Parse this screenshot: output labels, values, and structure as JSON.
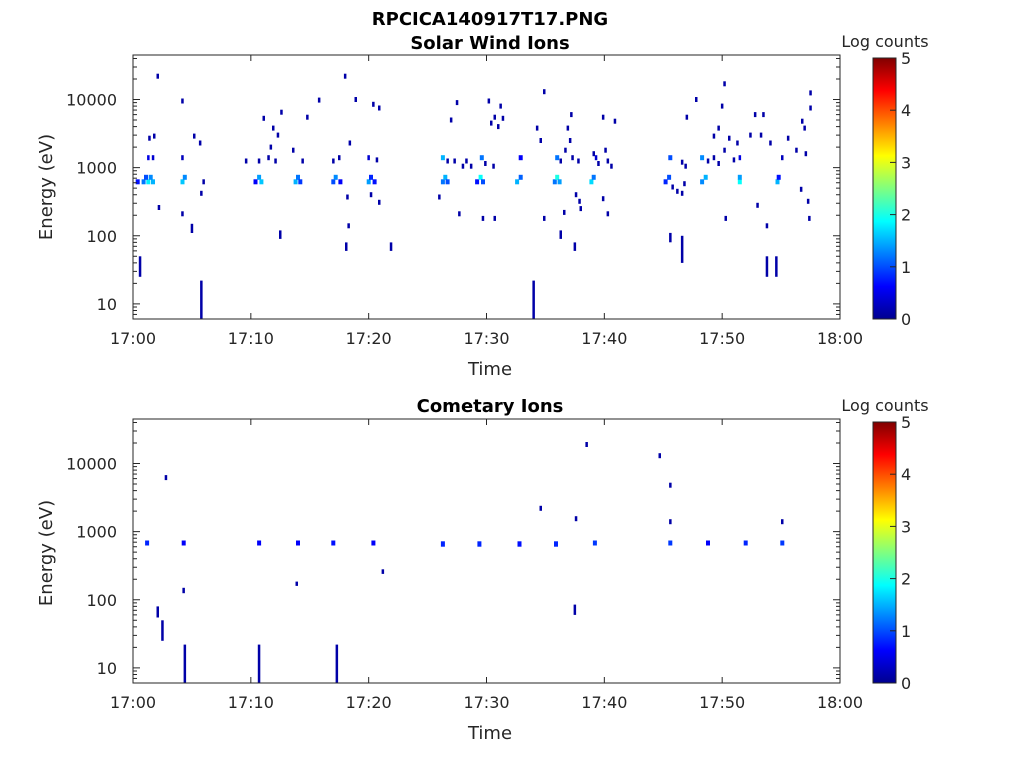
{
  "figure_title": "RPCICA140917T17.PNG",
  "colorbar": {
    "label": "Log counts",
    "ticks": [
      "0",
      "1",
      "2",
      "3",
      "4",
      "5"
    ],
    "range": [
      0,
      5
    ],
    "colormap": "jet"
  },
  "chart_data": [
    {
      "type": "heatmap",
      "title": "Solar Wind Ions",
      "xlabel": "Time",
      "ylabel": "Energy (eV)",
      "x_ticks": [
        "17:00",
        "17:10",
        "17:20",
        "17:30",
        "17:40",
        "17:50",
        "18:00"
      ],
      "xlim_minutes": [
        0,
        60
      ],
      "y_ticks": [
        "10",
        "100",
        "1000",
        "10000"
      ],
      "ylim": [
        6,
        45000
      ],
      "yscale": "log",
      "points": [
        {
          "t": 0.6,
          "e1": 25,
          "e2": 50,
          "v": 0.2
        },
        {
          "t": 5.8,
          "e1": 6,
          "e2": 22,
          "v": 0.2
        },
        {
          "t": 34.0,
          "e1": 6,
          "e2": 22,
          "v": 0.2
        },
        {
          "t": 0.4,
          "e": 620,
          "v": 0.7
        },
        {
          "t": 0.9,
          "e": 620,
          "v": 1.2
        },
        {
          "t": 1.3,
          "e": 620,
          "v": 1.8
        },
        {
          "t": 1.7,
          "e": 620,
          "v": 1.5
        },
        {
          "t": 1.1,
          "e": 720,
          "v": 1.0
        },
        {
          "t": 1.5,
          "e": 720,
          "v": 1.3
        },
        {
          "t": 1.3,
          "e": 1400,
          "v": 0.5
        },
        {
          "t": 1.7,
          "e": 1400,
          "v": 0.4
        },
        {
          "t": 1.4,
          "e": 2700,
          "v": 0.2
        },
        {
          "t": 1.8,
          "e": 2900,
          "v": 0.2
        },
        {
          "t": 2.1,
          "e": 22000,
          "v": 0.2
        },
        {
          "t": 2.2,
          "e": 260,
          "v": 0.2
        },
        {
          "t": 4.2,
          "e": 9500,
          "v": 0.2
        },
        {
          "t": 4.2,
          "e": 620,
          "v": 1.6
        },
        {
          "t": 4.4,
          "e": 720,
          "v": 1.3
        },
        {
          "t": 4.2,
          "e": 1400,
          "v": 0.3
        },
        {
          "t": 4.2,
          "e": 210,
          "v": 0.2
        },
        {
          "t": 5.0,
          "e1": 110,
          "e2": 150,
          "v": 0.2
        },
        {
          "t": 5.2,
          "e": 2900,
          "v": 0.2
        },
        {
          "t": 5.7,
          "e": 2300,
          "v": 0.2
        },
        {
          "t": 5.8,
          "e": 420,
          "v": 0.2
        },
        {
          "t": 6.0,
          "e": 620,
          "v": 0.2
        },
        {
          "t": 9.6,
          "e": 1250,
          "v": 0.2
        },
        {
          "t": 10.4,
          "e": 620,
          "v": 0.6
        },
        {
          "t": 10.7,
          "e": 720,
          "v": 1.4
        },
        {
          "t": 10.9,
          "e": 620,
          "v": 1.6
        },
        {
          "t": 10.7,
          "e": 1250,
          "v": 0.2
        },
        {
          "t": 11.1,
          "e": 5300,
          "v": 0.2
        },
        {
          "t": 11.5,
          "e": 1400,
          "v": 0.2
        },
        {
          "t": 11.7,
          "e": 2000,
          "v": 0.2
        },
        {
          "t": 11.9,
          "e": 3800,
          "v": 0.2
        },
        {
          "t": 12.1,
          "e": 1250,
          "v": 0.2
        },
        {
          "t": 12.3,
          "e": 3000,
          "v": 0.2
        },
        {
          "t": 12.5,
          "e1": 90,
          "e2": 120,
          "v": 0.2
        },
        {
          "t": 12.6,
          "e": 6500,
          "v": 0.2
        },
        {
          "t": 13.6,
          "e": 1800,
          "v": 0.2
        },
        {
          "t": 13.8,
          "e": 620,
          "v": 1.5
        },
        {
          "t": 14.0,
          "e": 720,
          "v": 1.2
        },
        {
          "t": 14.2,
          "e": 620,
          "v": 0.9
        },
        {
          "t": 14.4,
          "e": 1250,
          "v": 0.2
        },
        {
          "t": 14.8,
          "e": 5500,
          "v": 0.2
        },
        {
          "t": 15.8,
          "e": 9800,
          "v": 0.2
        },
        {
          "t": 17.0,
          "e": 620,
          "v": 1.0
        },
        {
          "t": 17.2,
          "e": 720,
          "v": 1.3
        },
        {
          "t": 17.6,
          "e": 620,
          "v": 0.6
        },
        {
          "t": 17.0,
          "e": 1250,
          "v": 0.2
        },
        {
          "t": 17.5,
          "e": 1400,
          "v": 0.2
        },
        {
          "t": 18.0,
          "e": 22000,
          "v": 0.2
        },
        {
          "t": 18.1,
          "e1": 60,
          "e2": 80,
          "v": 0.2
        },
        {
          "t": 18.3,
          "e": 140,
          "v": 0.2
        },
        {
          "t": 18.4,
          "e": 2300,
          "v": 0.2
        },
        {
          "t": 18.9,
          "e": 10000,
          "v": 0.2
        },
        {
          "t": 18.2,
          "e": 370,
          "v": 0.2
        },
        {
          "t": 20.0,
          "e": 620,
          "v": 1.4
        },
        {
          "t": 20.2,
          "e": 720,
          "v": 0.8
        },
        {
          "t": 20.0,
          "e": 1400,
          "v": 0.4
        },
        {
          "t": 20.2,
          "e": 400,
          "v": 0.2
        },
        {
          "t": 20.4,
          "e": 8500,
          "v": 0.2
        },
        {
          "t": 20.9,
          "e": 7500,
          "v": 0.2
        },
        {
          "t": 20.7,
          "e": 1300,
          "v": 0.2
        },
        {
          "t": 20.5,
          "e": 620,
          "v": 0.7
        },
        {
          "t": 20.9,
          "e": 310,
          "v": 0.2
        },
        {
          "t": 21.9,
          "e1": 60,
          "e2": 80,
          "v": 0.2
        },
        {
          "t": 26.0,
          "e": 370,
          "v": 0.2
        },
        {
          "t": 26.3,
          "e": 620,
          "v": 1.2
        },
        {
          "t": 26.5,
          "e": 720,
          "v": 1.5
        },
        {
          "t": 26.7,
          "e": 620,
          "v": 1.0
        },
        {
          "t": 26.3,
          "e": 1400,
          "v": 1.5
        },
        {
          "t": 26.7,
          "e": 1250,
          "v": 0.2
        },
        {
          "t": 27.0,
          "e": 5000,
          "v": 0.2
        },
        {
          "t": 27.3,
          "e": 1250,
          "v": 0.2
        },
        {
          "t": 27.5,
          "e": 9000,
          "v": 0.2
        },
        {
          "t": 27.7,
          "e": 210,
          "v": 0.2
        },
        {
          "t": 28.0,
          "e": 1050,
          "v": 0.2
        },
        {
          "t": 28.3,
          "e": 1250,
          "v": 0.2
        },
        {
          "t": 28.7,
          "e": 1050,
          "v": 0.2
        },
        {
          "t": 29.2,
          "e": 620,
          "v": 0.7
        },
        {
          "t": 29.5,
          "e": 720,
          "v": 1.9
        },
        {
          "t": 29.7,
          "e": 620,
          "v": 1.0
        },
        {
          "t": 29.6,
          "e": 1400,
          "v": 1.2
        },
        {
          "t": 29.7,
          "e": 180,
          "v": 0.2
        },
        {
          "t": 29.9,
          "e": 1150,
          "v": 0.2
        },
        {
          "t": 30.2,
          "e": 9500,
          "v": 0.2
        },
        {
          "t": 30.4,
          "e": 4500,
          "v": 0.2
        },
        {
          "t": 30.6,
          "e": 1050,
          "v": 0.2
        },
        {
          "t": 30.7,
          "e": 5500,
          "v": 0.2
        },
        {
          "t": 30.7,
          "e": 180,
          "v": 0.2
        },
        {
          "t": 31.0,
          "e": 4000,
          "v": 0.2
        },
        {
          "t": 31.2,
          "e": 8000,
          "v": 0.2
        },
        {
          "t": 31.4,
          "e": 5300,
          "v": 0.2
        },
        {
          "t": 32.6,
          "e": 620,
          "v": 1.5
        },
        {
          "t": 32.9,
          "e": 720,
          "v": 1.1
        },
        {
          "t": 32.9,
          "e": 1400,
          "v": 0.6
        },
        {
          "t": 34.3,
          "e": 3800,
          "v": 0.2
        },
        {
          "t": 34.6,
          "e": 2500,
          "v": 0.2
        },
        {
          "t": 34.9,
          "e": 13000,
          "v": 0.2
        },
        {
          "t": 34.9,
          "e": 180,
          "v": 0.2
        },
        {
          "t": 35.8,
          "e": 620,
          "v": 1.2
        },
        {
          "t": 36.0,
          "e": 720,
          "v": 2.0
        },
        {
          "t": 36.2,
          "e": 620,
          "v": 1.4
        },
        {
          "t": 36.0,
          "e": 1400,
          "v": 1.2
        },
        {
          "t": 36.3,
          "e": 1250,
          "v": 0.2
        },
        {
          "t": 36.3,
          "e1": 90,
          "e2": 120,
          "v": 0.2
        },
        {
          "t": 36.7,
          "e": 1800,
          "v": 0.2
        },
        {
          "t": 36.9,
          "e": 3800,
          "v": 0.2
        },
        {
          "t": 36.6,
          "e": 220,
          "v": 0.2
        },
        {
          "t": 37.1,
          "e": 2500,
          "v": 0.2
        },
        {
          "t": 37.2,
          "e": 6000,
          "v": 0.2
        },
        {
          "t": 37.3,
          "e": 1400,
          "v": 0.2
        },
        {
          "t": 37.5,
          "e1": 60,
          "e2": 80,
          "v": 0.2
        },
        {
          "t": 37.6,
          "e": 400,
          "v": 0.2
        },
        {
          "t": 37.8,
          "e": 1250,
          "v": 0.2
        },
        {
          "t": 37.9,
          "e": 320,
          "v": 0.2
        },
        {
          "t": 38.0,
          "e": 250,
          "v": 0.2
        },
        {
          "t": 38.9,
          "e": 620,
          "v": 1.7
        },
        {
          "t": 39.1,
          "e": 720,
          "v": 1.2
        },
        {
          "t": 39.3,
          "e": 1400,
          "v": 0.4
        },
        {
          "t": 39.1,
          "e": 1600,
          "v": 0.2
        },
        {
          "t": 39.5,
          "e": 1150,
          "v": 0.2
        },
        {
          "t": 39.9,
          "e": 5500,
          "v": 0.2
        },
        {
          "t": 39.9,
          "e": 350,
          "v": 0.2
        },
        {
          "t": 40.1,
          "e": 1800,
          "v": 0.2
        },
        {
          "t": 40.3,
          "e": 1250,
          "v": 0.2
        },
        {
          "t": 40.3,
          "e": 210,
          "v": 0.2
        },
        {
          "t": 40.6,
          "e": 1050,
          "v": 0.2
        },
        {
          "t": 40.9,
          "e": 4800,
          "v": 0.2
        },
        {
          "t": 45.2,
          "e": 620,
          "v": 0.8
        },
        {
          "t": 45.5,
          "e": 720,
          "v": 1.0
        },
        {
          "t": 45.6,
          "e": 1400,
          "v": 1.0
        },
        {
          "t": 45.8,
          "e": 520,
          "v": 0.2
        },
        {
          "t": 45.6,
          "e1": 80,
          "e2": 110,
          "v": 0.2
        },
        {
          "t": 46.2,
          "e": 450,
          "v": 0.2
        },
        {
          "t": 46.6,
          "e1": 40,
          "e2": 100,
          "v": 0.2
        },
        {
          "t": 46.6,
          "e": 1200,
          "v": 0.2
        },
        {
          "t": 46.6,
          "e": 420,
          "v": 0.2
        },
        {
          "t": 46.8,
          "e": 580,
          "v": 0.2
        },
        {
          "t": 46.9,
          "e": 1050,
          "v": 0.2
        },
        {
          "t": 47.0,
          "e": 5500,
          "v": 0.2
        },
        {
          "t": 47.8,
          "e": 10000,
          "v": 0.2
        },
        {
          "t": 48.3,
          "e": 620,
          "v": 1.3
        },
        {
          "t": 48.6,
          "e": 720,
          "v": 1.5
        },
        {
          "t": 48.3,
          "e": 1400,
          "v": 1.3
        },
        {
          "t": 48.8,
          "e": 1250,
          "v": 0.2
        },
        {
          "t": 49.3,
          "e": 2900,
          "v": 0.2
        },
        {
          "t": 49.3,
          "e": 1400,
          "v": 0.2
        },
        {
          "t": 49.7,
          "e": 3800,
          "v": 0.2
        },
        {
          "t": 49.7,
          "e": 1150,
          "v": 0.2
        },
        {
          "t": 50.0,
          "e": 8000,
          "v": 0.2
        },
        {
          "t": 50.2,
          "e": 17000,
          "v": 0.2
        },
        {
          "t": 50.2,
          "e": 1800,
          "v": 0.2
        },
        {
          "t": 50.3,
          "e": 180,
          "v": 0.2
        },
        {
          "t": 50.6,
          "e": 2700,
          "v": 0.2
        },
        {
          "t": 51.0,
          "e": 1300,
          "v": 0.2
        },
        {
          "t": 51.3,
          "e": 2300,
          "v": 0.2
        },
        {
          "t": 51.5,
          "e": 620,
          "v": 1.9
        },
        {
          "t": 51.5,
          "e": 1400,
          "v": 0.5
        },
        {
          "t": 51.5,
          "e": 720,
          "v": 1.4
        },
        {
          "t": 52.4,
          "e": 3000,
          "v": 0.2
        },
        {
          "t": 52.8,
          "e": 6000,
          "v": 0.2
        },
        {
          "t": 53.0,
          "e": 280,
          "v": 0.2
        },
        {
          "t": 53.3,
          "e": 3000,
          "v": 0.2
        },
        {
          "t": 53.5,
          "e": 6000,
          "v": 0.2
        },
        {
          "t": 53.8,
          "e1": 25,
          "e2": 50,
          "v": 0.2
        },
        {
          "t": 53.8,
          "e": 140,
          "v": 0.2
        },
        {
          "t": 54.1,
          "e": 2300,
          "v": 0.2
        },
        {
          "t": 54.6,
          "e1": 25,
          "e2": 50,
          "v": 0.2
        },
        {
          "t": 54.7,
          "e": 620,
          "v": 1.5
        },
        {
          "t": 54.8,
          "e": 720,
          "v": 0.7
        },
        {
          "t": 55.1,
          "e": 1400,
          "v": 0.3
        },
        {
          "t": 55.6,
          "e": 2700,
          "v": 0.2
        },
        {
          "t": 56.3,
          "e": 1800,
          "v": 0.2
        },
        {
          "t": 56.7,
          "e": 480,
          "v": 0.2
        },
        {
          "t": 56.8,
          "e": 4800,
          "v": 0.2
        },
        {
          "t": 57.0,
          "e": 3800,
          "v": 0.2
        },
        {
          "t": 57.1,
          "e": 1600,
          "v": 0.2
        },
        {
          "t": 57.3,
          "e": 320,
          "v": 0.2
        },
        {
          "t": 57.4,
          "e": 180,
          "v": 0.2
        },
        {
          "t": 57.5,
          "e": 7500,
          "v": 0.2
        },
        {
          "t": 57.5,
          "e": 12500,
          "v": 0.2
        }
      ]
    },
    {
      "type": "heatmap",
      "title": "Cometary Ions",
      "xlabel": "Time",
      "ylabel": "Energy (eV)",
      "x_ticks": [
        "17:00",
        "17:10",
        "17:20",
        "17:30",
        "17:40",
        "17:50",
        "18:00"
      ],
      "xlim_minutes": [
        0,
        60
      ],
      "y_ticks": [
        "10",
        "100",
        "1000",
        "10000"
      ],
      "ylim": [
        6,
        45000
      ],
      "yscale": "log",
      "points": [
        {
          "t": 1.2,
          "e": 680,
          "v": 0.8
        },
        {
          "t": 2.1,
          "e1": 55,
          "e2": 80,
          "v": 0.2
        },
        {
          "t": 2.5,
          "e1": 25,
          "e2": 50,
          "v": 0.2
        },
        {
          "t": 2.8,
          "e": 6200,
          "v": 0.2
        },
        {
          "t": 4.3,
          "e": 680,
          "v": 0.6
        },
        {
          "t": 4.3,
          "e1": 125,
          "e2": 150,
          "v": 0.2
        },
        {
          "t": 4.4,
          "e1": 6,
          "e2": 22,
          "v": 0.2
        },
        {
          "t": 10.7,
          "e1": 6,
          "e2": 22,
          "v": 0.2
        },
        {
          "t": 10.7,
          "e": 680,
          "v": 0.6
        },
        {
          "t": 13.9,
          "e1": 160,
          "e2": 185,
          "v": 0.2
        },
        {
          "t": 14.0,
          "e": 680,
          "v": 0.6
        },
        {
          "t": 17.0,
          "e": 680,
          "v": 0.7
        },
        {
          "t": 17.3,
          "e1": 6,
          "e2": 22,
          "v": 0.2
        },
        {
          "t": 20.4,
          "e": 680,
          "v": 0.6
        },
        {
          "t": 21.2,
          "e1": 240,
          "e2": 280,
          "v": 0.2
        },
        {
          "t": 26.3,
          "e1": 600,
          "e2": 720,
          "v": 0.8
        },
        {
          "t": 29.4,
          "e1": 600,
          "e2": 720,
          "v": 0.8
        },
        {
          "t": 32.8,
          "e1": 600,
          "e2": 720,
          "v": 0.7
        },
        {
          "t": 34.6,
          "e": 2200,
          "v": 0.2
        },
        {
          "t": 35.9,
          "e1": 600,
          "e2": 720,
          "v": 0.8
        },
        {
          "t": 37.5,
          "e1": 60,
          "e2": 85,
          "v": 0.2
        },
        {
          "t": 37.6,
          "e": 1550,
          "v": 0.2
        },
        {
          "t": 38.5,
          "e": 19000,
          "v": 0.2
        },
        {
          "t": 39.2,
          "e": 680,
          "v": 0.9
        },
        {
          "t": 44.7,
          "e": 13000,
          "v": 0.2
        },
        {
          "t": 45.6,
          "e": 4800,
          "v": 0.2
        },
        {
          "t": 45.6,
          "e": 1400,
          "v": 0.2
        },
        {
          "t": 45.6,
          "e": 680,
          "v": 0.9
        },
        {
          "t": 48.8,
          "e": 680,
          "v": 0.6
        },
        {
          "t": 52.0,
          "e": 680,
          "v": 0.8
        },
        {
          "t": 55.1,
          "e": 1400,
          "v": 0.2
        },
        {
          "t": 55.1,
          "e": 680,
          "v": 0.9
        }
      ]
    }
  ]
}
